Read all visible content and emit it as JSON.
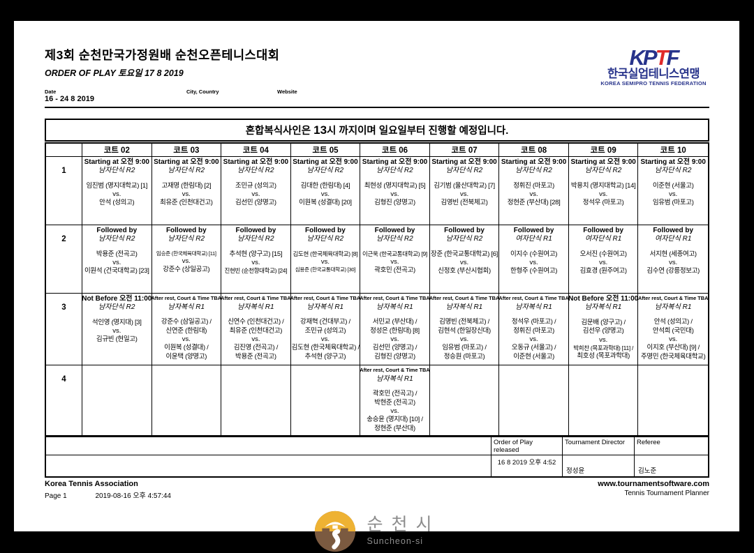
{
  "page": {
    "title": "제3회 순천만국가정원배 순천오픈테니스대회",
    "subtitle": "ORDER OF PLAY 토요일 17 8 2019",
    "meta": {
      "date_label": "Date",
      "date_value": "16 - 24 8 2019",
      "city_label": "City, Country",
      "website_label": "Website"
    },
    "kptf_logo": {
      "letters": [
        "K",
        "P",
        "T",
        "F"
      ],
      "korean": "한국실업테니스연맹",
      "english": "KOREA SEMIPRO TENNIS FEDERATION",
      "blue": "#27338b",
      "red": "#e02a2a"
    },
    "notice": {
      "prefix": "혼합복식사인은 ",
      "big": "13",
      "suffix": "시 까지이며 일요일부터 진행할 예정입니다."
    }
  },
  "schedule": {
    "vs_label": "vs.",
    "courts": [
      "코트 02",
      "코트 03",
      "코트 04",
      "코트 05",
      "코트 06",
      "코트 07",
      "코트 08",
      "코트 09",
      "코트 10"
    ],
    "rows": [
      {
        "number": "1",
        "cells": [
          {
            "time": "Starting at 오전 9:00",
            "event": "남자단식 R2",
            "side1": [
              "임진범 (명지대학교) [1]"
            ],
            "side2": [
              "안석 (성의고)"
            ]
          },
          {
            "time": "Starting at 오전 9:00",
            "event": "남자단식 R2",
            "side1": [
              "고재명 (한림대) [2]"
            ],
            "side2": [
              "최유준 (인천대건고)"
            ]
          },
          {
            "time": "Starting at 오전 9:00",
            "event": "남자단식 R2",
            "side1": [
              "조민규 (성의고)"
            ],
            "side2": [
              "김선민 (양명고)"
            ]
          },
          {
            "time": "Starting at 오전 9:00",
            "event": "남자단식 R2",
            "side1": [
              "김대한 (한림대) [4]"
            ],
            "side2": [
              "이원복 (성결대) [20]"
            ]
          },
          {
            "time": "Starting at 오전 9:00",
            "event": "남자단식 R2",
            "side1": [
              "최현성 (명지대학교) [5]"
            ],
            "side2": [
              "김형진 (양명고)"
            ]
          },
          {
            "time": "Starting at 오전 9:00",
            "event": "남자단식 R2",
            "side1": [
              "김기범 (울산대학교) [7]"
            ],
            "side2": [
              "김영빈 (전북체고)"
            ]
          },
          {
            "time": "Starting at 오전 9:00",
            "event": "남자단식 R2",
            "side1": [
              "정휘진 (마포고)"
            ],
            "side2": [
              "정현준 (부산대) [28]"
            ]
          },
          {
            "time": "Starting at 오전 9:00",
            "event": "남자단식 R2",
            "side1": [
              "박용치 (명지대학교) [14]"
            ],
            "side2": [
              "정석우 (마포고)"
            ]
          },
          {
            "time": "Starting at 오전 9:00",
            "event": "남자단식 R2",
            "side1": [
              "이준현 (서울고)"
            ],
            "side2": [
              "임유범 (마포고)"
            ]
          }
        ]
      },
      {
        "number": "2",
        "cells": [
          {
            "time": "Followed by",
            "event": "남자단식 R2",
            "side1": [
              "박용준 (전곡고)"
            ],
            "side2": [
              "이원석 (건국대학교) [23]"
            ]
          },
          {
            "time": "Followed by",
            "event": "남자단식 R2",
            "side1": [
              "임승준 (한국체육대학교) [11]"
            ],
            "side2": [
              "강준수 (상일공고)"
            ]
          },
          {
            "time": "Followed by",
            "event": "남자단식 R2",
            "side1": [
              "추석현 (양구고) [15]"
            ],
            "side2": [
              "진현빈 (순천향대학교) [24]"
            ]
          },
          {
            "time": "Followed by",
            "event": "남자단식 R2",
            "side1": [
              "김도현 (한국체육대학교) [8]"
            ],
            "side2": [
              "심용준 (한국교통대학교) [30]"
            ]
          },
          {
            "time": "Followed by",
            "event": "남자단식 R2",
            "side1": [
              "이근욱 (한국교통대학교) [9]"
            ],
            "side2": [
              "곽호민 (전곡고)"
            ]
          },
          {
            "time": "Followed by",
            "event": "남자단식 R2",
            "side1": [
              "장준 (한국교통대학교) [6]"
            ],
            "side2": [
              "신정호 (부산시협회)"
            ]
          },
          {
            "time": "Followed by",
            "event": "여자단식 R1",
            "side1": [
              "이지수 (수원여고)"
            ],
            "side2": [
              "한형주 (수원여고)"
            ]
          },
          {
            "time": "Followed by",
            "event": "여자단식 R1",
            "side1": [
              "오서진 (수원여고)"
            ],
            "side2": [
              "김효경 (원주여고)"
            ]
          },
          {
            "time": "Followed by",
            "event": "여자단식 R1",
            "side1": [
              "서지현 (세종여고)"
            ],
            "side2": [
              "김수연 (강릉정보고)"
            ]
          }
        ]
      },
      {
        "number": "3",
        "cells": [
          {
            "time": "Not Before 오전 11:00",
            "event": "남자단식 R2",
            "side1": [
              "석인영 (명지대) [3]"
            ],
            "side2": [
              "김규빈 (현일고)"
            ]
          },
          {
            "time": "After rest, Court & Time TBA",
            "event": "남자복식 R1",
            "side1": [
              "강준수 (삼일공고) /",
              "신연준 (한림대)"
            ],
            "side2": [
              "이원복 (성결대) /",
              "이윤택 (양명고)"
            ]
          },
          {
            "time": "After rest, Court & Time TBA",
            "event": "남자복식 R1",
            "side1": [
              "신연수 (인천대건고) /",
              "최유준 (인천대건고)"
            ],
            "side2": [
              "김진영 (전곡고) /",
              "박용준 (전곡고)"
            ]
          },
          {
            "time": "After rest, Court & Time TBA",
            "event": "남자복식 R1",
            "side1": [
              "강재혁 (건대부고) /",
              "조민규 (성의고)"
            ],
            "side2": [
              "김도현 (한국체육대학교) /",
              "추석현 (양구고)"
            ]
          },
          {
            "time": "After rest, Court & Time TBA",
            "event": "남자복식 R1",
            "side1": [
              "서민교 (부산대) /",
              "정성은 (한림대) [8]"
            ],
            "side2": [
              "김선민 (양명고) /",
              "김형진 (양명고)"
            ]
          },
          {
            "time": "After rest, Court & Time TBA",
            "event": "남자복식 R1",
            "side1": [
              "김명빈 (전북체고) /",
              "김현석 (한일장신대)"
            ],
            "side2": [
              "임유범 (마포고) /",
              "정승원 (마포고)"
            ]
          },
          {
            "time": "After rest, Court & Time TBA",
            "event": "남자복식 R1",
            "side1": [
              "정석우 (마포고) /",
              "정휘진 (마포고)"
            ],
            "side2": [
              "오동규 (서울고) /",
              "이준현 (서울고)"
            ]
          },
          {
            "time": "Not Before 오전 11:00",
            "event": "남자복식 R1",
            "side1": [
              "김문배 (양구고) /",
              "김선우 (양명고)"
            ],
            "side2": [
              "박희찬 (목포과학대) [11] /",
              "최호성 (목포과학대)"
            ]
          },
          {
            "time": "After rest, Court & Time TBA",
            "event": "남자복식 R1",
            "side1": [
              "안석 (성의고) /",
              "안석희 (국민대)"
            ],
            "side2": [
              "이지호 (부산대) [9] /",
              "주명민 (한국체육대학교)"
            ]
          }
        ]
      },
      {
        "number": "4",
        "cells": [
          null,
          null,
          null,
          null,
          {
            "time": "After rest, Court & Time TBA",
            "event": "남자복식 R1",
            "side1": [
              "곽호민 (전곡고) /",
              "박현준 (전곡고)"
            ],
            "side2": [
              "송승윤 (명지대) [10] /",
              "정현준 (부산대)"
            ]
          },
          null,
          null,
          null,
          null
        ]
      }
    ]
  },
  "release": {
    "released_label": "Order of Play released",
    "released_value": "16 8 2019 오후 4:52",
    "director_label": "Tournament Director",
    "director_value": "정성윤",
    "referee_label": "Referee",
    "referee_value": "김노준"
  },
  "footer": {
    "association": "Korea Tennis Association",
    "page_label": "Page 1",
    "printed": "2019-08-16 오후 4:57:44",
    "website": "www.tournamentsoftware.com",
    "software": "Tennis Tournament Planner",
    "city_logo": {
      "korean": "순천시",
      "english": "Suncheon-si",
      "gold": "#eeb233",
      "brown": "#7b5a40"
    }
  }
}
